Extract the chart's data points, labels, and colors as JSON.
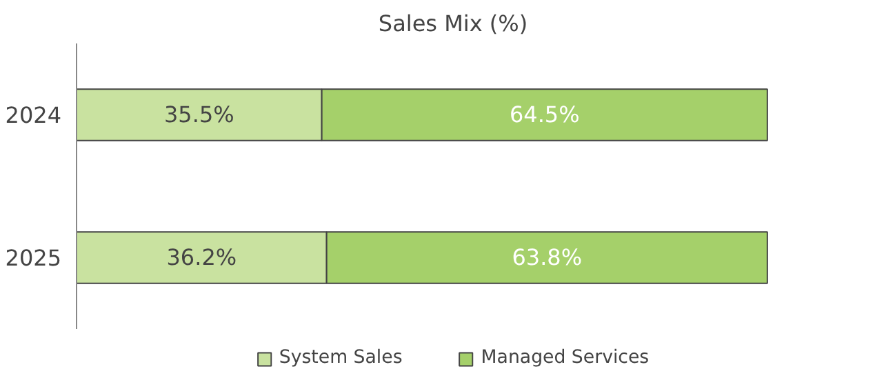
{
  "chart_data": {
    "type": "bar",
    "title": "Sales Mix (%)",
    "orientation": "horizontal",
    "stacked": true,
    "categories": [
      "2024",
      "2025"
    ],
    "series": [
      {
        "name": "System Sales",
        "color": "#c9e2a0",
        "values": [
          35.5,
          36.2
        ],
        "value_labels": [
          "35.5%",
          "36.2%"
        ]
      },
      {
        "name": "Managed Services",
        "color": "#a5d06a",
        "values": [
          64.5,
          63.8
        ],
        "value_labels": [
          "64.5%",
          "63.8%"
        ]
      }
    ],
    "legend": "bottom"
  }
}
